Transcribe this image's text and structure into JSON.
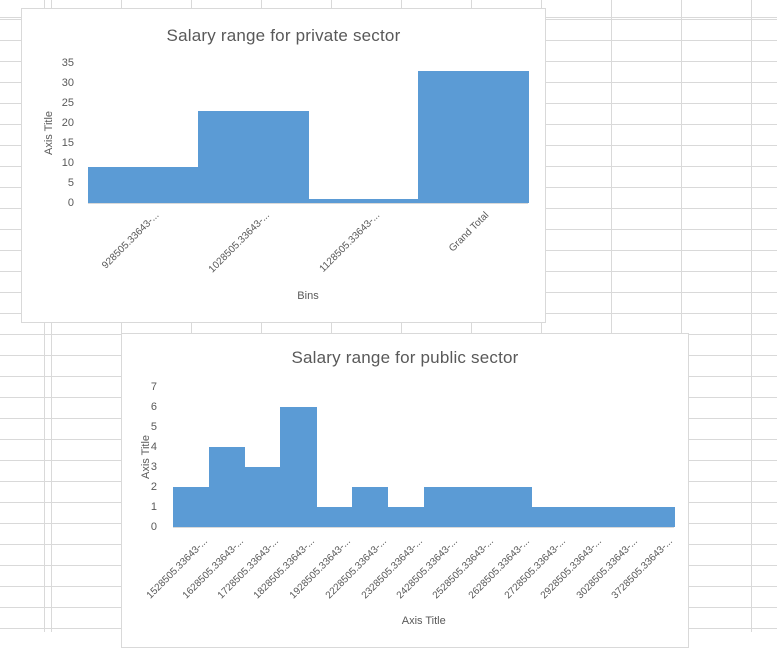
{
  "colors": {
    "bar": "#5B9BD5",
    "chart_text": "#595959",
    "gridline": "#D9D9D9",
    "chart_border": "#D9D9D9",
    "background": "#FFFFFF"
  },
  "chart_data": [
    {
      "type": "bar",
      "title": "Salary range for private sector",
      "xlabel": "Bins",
      "ylabel": "Axis Title",
      "categories": [
        "928505.33643-...",
        "1028505.33643-...",
        "1128505.33643-...",
        "Grand Total"
      ],
      "values": [
        9,
        23,
        1,
        33
      ],
      "ylim": [
        0,
        35
      ],
      "yticks": [
        0,
        5,
        10,
        15,
        20,
        25,
        30,
        35
      ],
      "bar_color": "#5B9BD5",
      "gap_width_pct": 0,
      "grid": false,
      "legend": "none",
      "x_label_rotation_deg": 45
    },
    {
      "type": "bar",
      "title": "Salary range for public sector",
      "xlabel": "Axis Title",
      "ylabel": "Axis Title",
      "categories": [
        "1528505.33643-...",
        "1628505.33643-...",
        "1728505.33643-...",
        "1828505.33643-...",
        "1928505.33643-...",
        "2228505.33643-...",
        "2328505.33643-...",
        "2428505.33643-...",
        "2528505.33643-...",
        "2628505.33643-...",
        "2728505.33643-...",
        "2928505.33643-...",
        "3028505.33643-...",
        "3728505.33643-..."
      ],
      "values": [
        2,
        4,
        3,
        6,
        1,
        2,
        1,
        2,
        2,
        2,
        1,
        1,
        1,
        1
      ],
      "ylim": [
        0,
        7
      ],
      "yticks": [
        0,
        1,
        2,
        3,
        4,
        5,
        6,
        7
      ],
      "bar_color": "#5B9BD5",
      "gap_width_pct": 0,
      "grid": false,
      "legend": "none",
      "x_label_rotation_deg": 45
    }
  ]
}
